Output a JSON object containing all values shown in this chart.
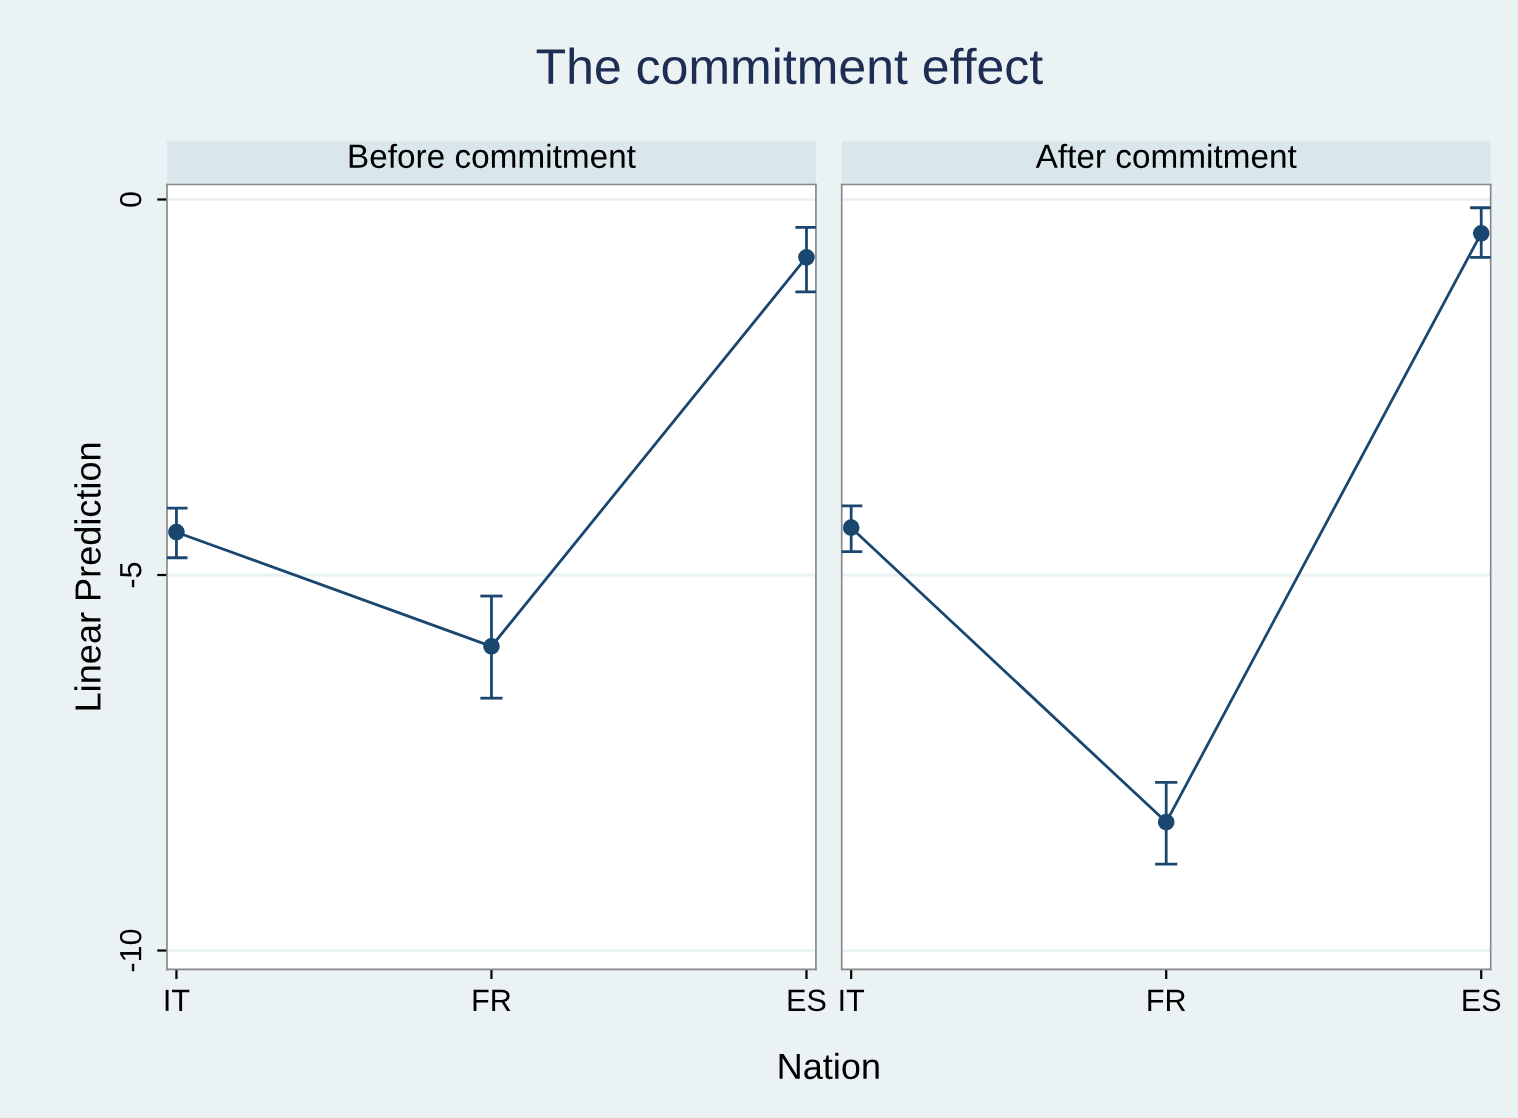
{
  "chart_data": [
    {
      "type": "line",
      "title": "Before commitment",
      "annotations": [
        "The commitment effect"
      ],
      "xlabel": "Nation",
      "ylabel": "Linear Prediction",
      "categories": [
        "IT",
        "FR",
        "ES"
      ],
      "series": [
        {
          "color": "#1a476f",
          "values": [
            -4.43,
            -5.95,
            -0.77
          ],
          "errors": [
            [
              -4.77,
              -4.11
            ],
            [
              -6.64,
              -5.28
            ],
            [
              -1.23,
              -0.37
            ]
          ]
        }
      ],
      "ylim": [
        -10.25,
        0.2
      ],
      "yticks": [
        -10,
        -5,
        0
      ],
      "grid": "y",
      "marker": "circle",
      "line_style": "solid"
    },
    {
      "type": "line",
      "title": "After commitment",
      "categories": [
        "IT",
        "FR",
        "ES"
      ],
      "series": [
        {
          "color": "#1a476f",
          "values": [
            -4.37,
            -8.29,
            -0.45
          ],
          "errors": [
            [
              -4.69,
              -4.08
            ],
            [
              -8.85,
              -7.76
            ],
            [
              -0.77,
              -0.11
            ]
          ]
        }
      ],
      "ylim": [
        -10.25,
        0.2
      ],
      "yticks": [
        -10,
        -5,
        0
      ],
      "grid": "y",
      "marker": "circle",
      "line_style": "solid",
      "tick_labels": "x"
    }
  ]
}
